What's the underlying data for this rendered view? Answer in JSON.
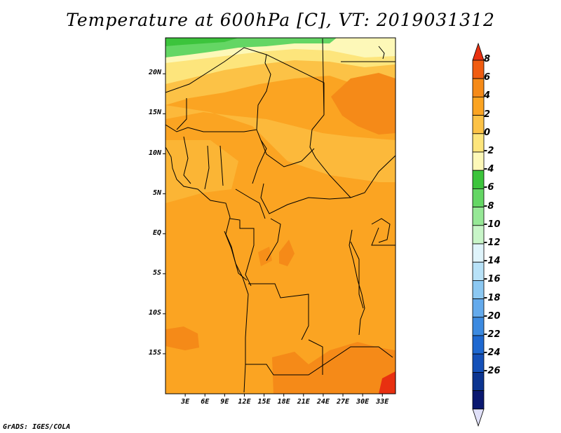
{
  "title": "Temperature at 600hPa [C], VT: 2019031312",
  "credit": "GrADS: IGES/COLA",
  "map": {
    "lon_range": [
      0,
      35
    ],
    "lat_range": [
      -20,
      24.5
    ],
    "y_ticks": [
      {
        "lat": 20,
        "label": "20N"
      },
      {
        "lat": 15,
        "label": "15N"
      },
      {
        "lat": 10,
        "label": "10N"
      },
      {
        "lat": 5,
        "label": "5N"
      },
      {
        "lat": 0,
        "label": "EQ"
      },
      {
        "lat": -5,
        "label": "5S"
      },
      {
        "lat": -10,
        "label": "10S"
      },
      {
        "lat": -15,
        "label": "15S"
      }
    ],
    "x_ticks": [
      {
        "lon": 3,
        "label": "3E"
      },
      {
        "lon": 6,
        "label": "6E"
      },
      {
        "lon": 9,
        "label": "9E"
      },
      {
        "lon": 12,
        "label": "12E"
      },
      {
        "lon": 15,
        "label": "15E"
      },
      {
        "lon": 18,
        "label": "18E"
      },
      {
        "lon": 21,
        "label": "21E"
      },
      {
        "lon": 24,
        "label": "24E"
      },
      {
        "lon": 27,
        "label": "27E"
      },
      {
        "lon": 30,
        "label": "30E"
      },
      {
        "lon": 33,
        "label": "33E"
      }
    ]
  },
  "colorbar": {
    "levels": [
      "8",
      "6",
      "4",
      "2",
      "0",
      "-2",
      "-4",
      "-6",
      "-8",
      "-10",
      "-12",
      "-14",
      "-16",
      "-18",
      "-20",
      "-22",
      "-24",
      "-26"
    ],
    "colors_top_to_bottom": [
      "#e83010",
      "#f05c10",
      "#f58a18",
      "#fba422",
      "#fcc246",
      "#fde57c",
      "#fdf8b8",
      "#3cc43c",
      "#64d664",
      "#96e896",
      "#c8f5c8",
      "#dff4fb",
      "#b8e2f8",
      "#8cc8f2",
      "#64aaec",
      "#3c8ae0",
      "#1e68d0",
      "#1450b8",
      "#0c3490",
      "#0a1870",
      "#e0e0f8"
    ]
  }
}
